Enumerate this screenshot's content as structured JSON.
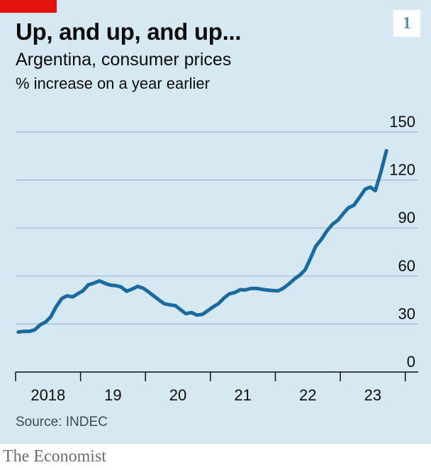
{
  "title": "Up, and up, and up...",
  "subtitle": "Argentina, consumer prices",
  "unit_label": "% increase on a year earlier",
  "chart_number": "1",
  "source": "Source: INDEC",
  "brand": "The Economist",
  "colors": {
    "background": "#d6e8f2",
    "line": "#1a6aa0",
    "accent": "#e3120b",
    "grid": "#9fb7c6"
  },
  "chart_data": {
    "type": "line",
    "title": "Up, and up, and up...",
    "subtitle": "Argentina, consumer prices",
    "ylabel": "% increase on a year earlier",
    "ylim": [
      0,
      150
    ],
    "yticks": [
      0,
      30,
      60,
      90,
      120,
      150
    ],
    "xlim": [
      2018.0,
      2024.2
    ],
    "xticks": [
      {
        "value": 2018,
        "label": "2018"
      },
      {
        "value": 2019,
        "label": "19"
      },
      {
        "value": 2020,
        "label": "20"
      },
      {
        "value": 2021,
        "label": "21"
      },
      {
        "value": 2022,
        "label": "22"
      },
      {
        "value": 2023,
        "label": "23"
      }
    ],
    "grid": true,
    "series": [
      {
        "color": "#1a6aa0",
        "points": [
          [
            2018.04,
            25.0
          ],
          [
            2018.12,
            25.4
          ],
          [
            2018.21,
            25.4
          ],
          [
            2018.29,
            26.3
          ],
          [
            2018.38,
            29.5
          ],
          [
            2018.46,
            31.2
          ],
          [
            2018.54,
            34.4
          ],
          [
            2018.62,
            40.5
          ],
          [
            2018.71,
            45.9
          ],
          [
            2018.79,
            47.6
          ],
          [
            2018.88,
            47.0
          ],
          [
            2018.96,
            49.0
          ],
          [
            2019.04,
            50.9
          ],
          [
            2019.12,
            54.5
          ],
          [
            2019.21,
            55.6
          ],
          [
            2019.29,
            57.0
          ],
          [
            2019.38,
            55.4
          ],
          [
            2019.46,
            54.3
          ],
          [
            2019.54,
            54.0
          ],
          [
            2019.62,
            53.3
          ],
          [
            2019.71,
            50.5
          ],
          [
            2019.79,
            51.8
          ],
          [
            2019.88,
            53.5
          ],
          [
            2019.96,
            52.5
          ],
          [
            2020.04,
            50.3
          ],
          [
            2020.12,
            47.8
          ],
          [
            2020.21,
            45.0
          ],
          [
            2020.29,
            42.7
          ],
          [
            2020.38,
            42.0
          ],
          [
            2020.46,
            41.5
          ],
          [
            2020.54,
            39.0
          ],
          [
            2020.62,
            36.5
          ],
          [
            2020.71,
            37.2
          ],
          [
            2020.79,
            35.6
          ],
          [
            2020.88,
            36.1
          ],
          [
            2020.96,
            38.4
          ],
          [
            2021.04,
            40.7
          ],
          [
            2021.12,
            42.6
          ],
          [
            2021.21,
            46.3
          ],
          [
            2021.29,
            48.8
          ],
          [
            2021.38,
            49.8
          ],
          [
            2021.46,
            51.5
          ],
          [
            2021.54,
            51.3
          ],
          [
            2021.62,
            52.2
          ],
          [
            2021.71,
            52.3
          ],
          [
            2021.79,
            51.7
          ],
          [
            2021.88,
            51.2
          ],
          [
            2021.96,
            50.9
          ],
          [
            2022.04,
            50.7
          ],
          [
            2022.12,
            52.3
          ],
          [
            2022.21,
            55.1
          ],
          [
            2022.29,
            58.0
          ],
          [
            2022.38,
            60.7
          ],
          [
            2022.46,
            64.0
          ],
          [
            2022.54,
            71.0
          ],
          [
            2022.62,
            78.5
          ],
          [
            2022.71,
            83.0
          ],
          [
            2022.79,
            88.0
          ],
          [
            2022.88,
            92.4
          ],
          [
            2022.96,
            94.8
          ],
          [
            2023.04,
            98.8
          ],
          [
            2023.12,
            102.5
          ],
          [
            2023.21,
            104.3
          ],
          [
            2023.29,
            108.8
          ],
          [
            2023.38,
            114.2
          ],
          [
            2023.46,
            115.6
          ],
          [
            2023.54,
            113.4
          ],
          [
            2023.62,
            124.4
          ],
          [
            2023.71,
            138.3
          ]
        ]
      }
    ]
  }
}
